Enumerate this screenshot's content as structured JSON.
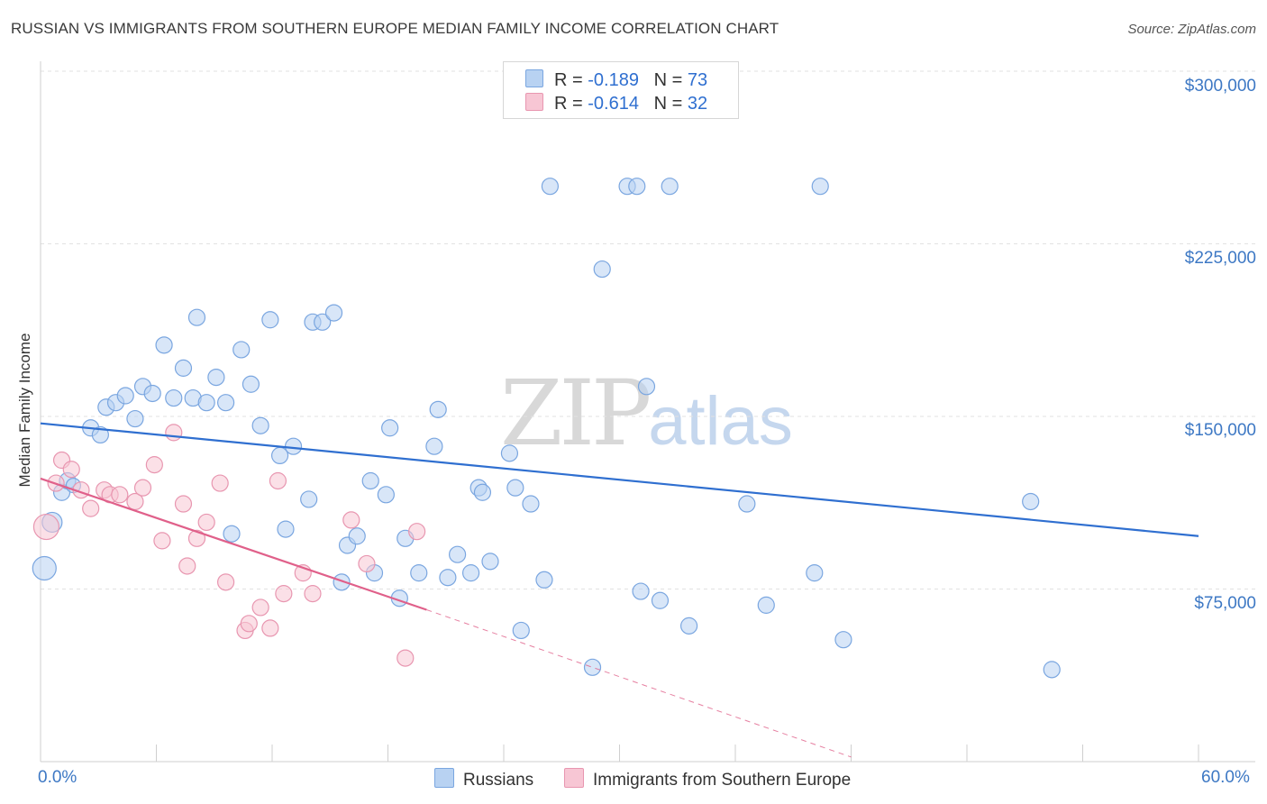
{
  "header": {
    "title": "RUSSIAN VS IMMIGRANTS FROM SOUTHERN EUROPE MEDIAN FAMILY INCOME CORRELATION CHART",
    "source": "Source: ZipAtlas.com"
  },
  "watermark": {
    "zip": "ZIP",
    "atlas": "atlas"
  },
  "legend": {
    "rows": [
      {
        "r_label": "R =",
        "r_value": "-0.189",
        "n_label": "N =",
        "n_value": "73"
      },
      {
        "r_label": "R =",
        "r_value": "-0.614",
        "n_label": "N =",
        "n_value": "32"
      }
    ]
  },
  "colors": {
    "russians_fill": "#b8d2f2",
    "russians_stroke": "#7aa6e0",
    "russians_line": "#2f6fd0",
    "immigrants_fill": "#f7c6d4",
    "immigrants_stroke": "#e896b0",
    "immigrants_line": "#e0608a",
    "tick_text": "#3d78c4",
    "grid": "#e2e2e2"
  },
  "chart_data": {
    "type": "scatter",
    "title": "RUSSIAN VS IMMIGRANTS FROM SOUTHERN EUROPE MEDIAN FAMILY INCOME CORRELATION CHART",
    "xlabel": "",
    "ylabel": "Median Family Income",
    "xlim": [
      0,
      60
    ],
    "ylim": [
      0,
      300000
    ],
    "x_tick_labels": [
      "0.0%",
      "60.0%"
    ],
    "y_ticks": [
      75000,
      150000,
      225000,
      300000
    ],
    "y_tick_labels": [
      "$75,000",
      "$150,000",
      "$225,000",
      "$300,000"
    ],
    "grid": "horizontal dashed",
    "legend_position": "top-center and bottom",
    "series": [
      {
        "name": "Russians",
        "r": -0.189,
        "n": 73,
        "trend": {
          "x": [
            0,
            60
          ],
          "y": [
            147000,
            98000
          ]
        },
        "points": [
          [
            0.2,
            84000,
            13
          ],
          [
            0.6,
            104000,
            11
          ],
          [
            1.1,
            117000,
            9
          ],
          [
            1.4,
            122000,
            9
          ],
          [
            1.7,
            120000,
            8
          ],
          [
            2.6,
            145000,
            9
          ],
          [
            3.1,
            142000,
            9
          ],
          [
            3.4,
            154000,
            9
          ],
          [
            3.9,
            156000,
            9
          ],
          [
            4.4,
            159000,
            9
          ],
          [
            4.9,
            149000,
            9
          ],
          [
            5.3,
            163000,
            9
          ],
          [
            5.8,
            160000,
            9
          ],
          [
            6.4,
            181000,
            9
          ],
          [
            6.9,
            158000,
            9
          ],
          [
            7.4,
            171000,
            9
          ],
          [
            7.9,
            158000,
            9
          ],
          [
            8.1,
            193000,
            9
          ],
          [
            8.6,
            156000,
            9
          ],
          [
            9.1,
            167000,
            9
          ],
          [
            9.6,
            156000,
            9
          ],
          [
            9.9,
            99000,
            9
          ],
          [
            10.4,
            179000,
            9
          ],
          [
            10.9,
            164000,
            9
          ],
          [
            11.4,
            146000,
            9
          ],
          [
            11.9,
            192000,
            9
          ],
          [
            12.4,
            133000,
            9
          ],
          [
            12.7,
            101000,
            9
          ],
          [
            13.1,
            137000,
            9
          ],
          [
            13.9,
            114000,
            9
          ],
          [
            14.1,
            191000,
            9
          ],
          [
            14.6,
            191000,
            9
          ],
          [
            15.2,
            195000,
            9
          ],
          [
            15.6,
            78000,
            9
          ],
          [
            15.9,
            94000,
            9
          ],
          [
            16.4,
            98000,
            9
          ],
          [
            17.1,
            122000,
            9
          ],
          [
            17.3,
            82000,
            9
          ],
          [
            17.9,
            116000,
            9
          ],
          [
            18.1,
            145000,
            9
          ],
          [
            18.6,
            71000,
            9
          ],
          [
            18.9,
            97000,
            9
          ],
          [
            19.6,
            82000,
            9
          ],
          [
            20.4,
            137000,
            9
          ],
          [
            20.6,
            153000,
            9
          ],
          [
            21.1,
            80000,
            9
          ],
          [
            21.6,
            90000,
            9
          ],
          [
            22.3,
            82000,
            9
          ],
          [
            22.7,
            119000,
            9
          ],
          [
            22.9,
            117000,
            9
          ],
          [
            23.3,
            87000,
            9
          ],
          [
            24.3,
            134000,
            9
          ],
          [
            24.6,
            119000,
            9
          ],
          [
            24.9,
            57000,
            9
          ],
          [
            25.4,
            112000,
            9
          ],
          [
            26.1,
            79000,
            9
          ],
          [
            26.4,
            250000,
            9
          ],
          [
            28.6,
            41000,
            9
          ],
          [
            29.1,
            214000,
            9
          ],
          [
            30.4,
            250000,
            9
          ],
          [
            30.9,
            250000,
            9
          ],
          [
            31.1,
            74000,
            9
          ],
          [
            31.4,
            163000,
            9
          ],
          [
            32.1,
            70000,
            9
          ],
          [
            32.6,
            250000,
            9
          ],
          [
            33.6,
            59000,
            9
          ],
          [
            36.6,
            112000,
            9
          ],
          [
            37.6,
            68000,
            9
          ],
          [
            40.1,
            82000,
            9
          ],
          [
            40.4,
            250000,
            9
          ],
          [
            41.6,
            53000,
            9
          ],
          [
            51.3,
            113000,
            9
          ],
          [
            52.4,
            40000,
            9
          ]
        ]
      },
      {
        "name": "Immigrants from Southern Europe",
        "r": -0.614,
        "n": 32,
        "trend": {
          "x": [
            0,
            20
          ],
          "y": [
            123000,
            66000
          ]
        },
        "trend_dashed": {
          "x": [
            20,
            42
          ],
          "y": [
            66000,
            2000
          ]
        },
        "points": [
          [
            0.3,
            102000,
            14
          ],
          [
            0.8,
            121000,
            9
          ],
          [
            1.1,
            131000,
            9
          ],
          [
            1.6,
            127000,
            9
          ],
          [
            2.1,
            118000,
            9
          ],
          [
            2.6,
            110000,
            9
          ],
          [
            3.3,
            118000,
            9
          ],
          [
            3.6,
            116000,
            9
          ],
          [
            4.1,
            116000,
            9
          ],
          [
            4.9,
            113000,
            9
          ],
          [
            5.3,
            119000,
            9
          ],
          [
            5.9,
            129000,
            9
          ],
          [
            6.3,
            96000,
            9
          ],
          [
            6.9,
            143000,
            9
          ],
          [
            7.4,
            112000,
            9
          ],
          [
            7.6,
            85000,
            9
          ],
          [
            8.1,
            97000,
            9
          ],
          [
            8.6,
            104000,
            9
          ],
          [
            9.3,
            121000,
            9
          ],
          [
            9.6,
            78000,
            9
          ],
          [
            10.6,
            57000,
            9
          ],
          [
            10.8,
            60000,
            9
          ],
          [
            11.4,
            67000,
            9
          ],
          [
            11.9,
            58000,
            9
          ],
          [
            12.3,
            122000,
            9
          ],
          [
            12.6,
            73000,
            9
          ],
          [
            13.6,
            82000,
            9
          ],
          [
            14.1,
            73000,
            9
          ],
          [
            16.1,
            105000,
            9
          ],
          [
            16.9,
            86000,
            9
          ],
          [
            18.9,
            45000,
            9
          ],
          [
            19.5,
            100000,
            9
          ]
        ]
      }
    ]
  }
}
